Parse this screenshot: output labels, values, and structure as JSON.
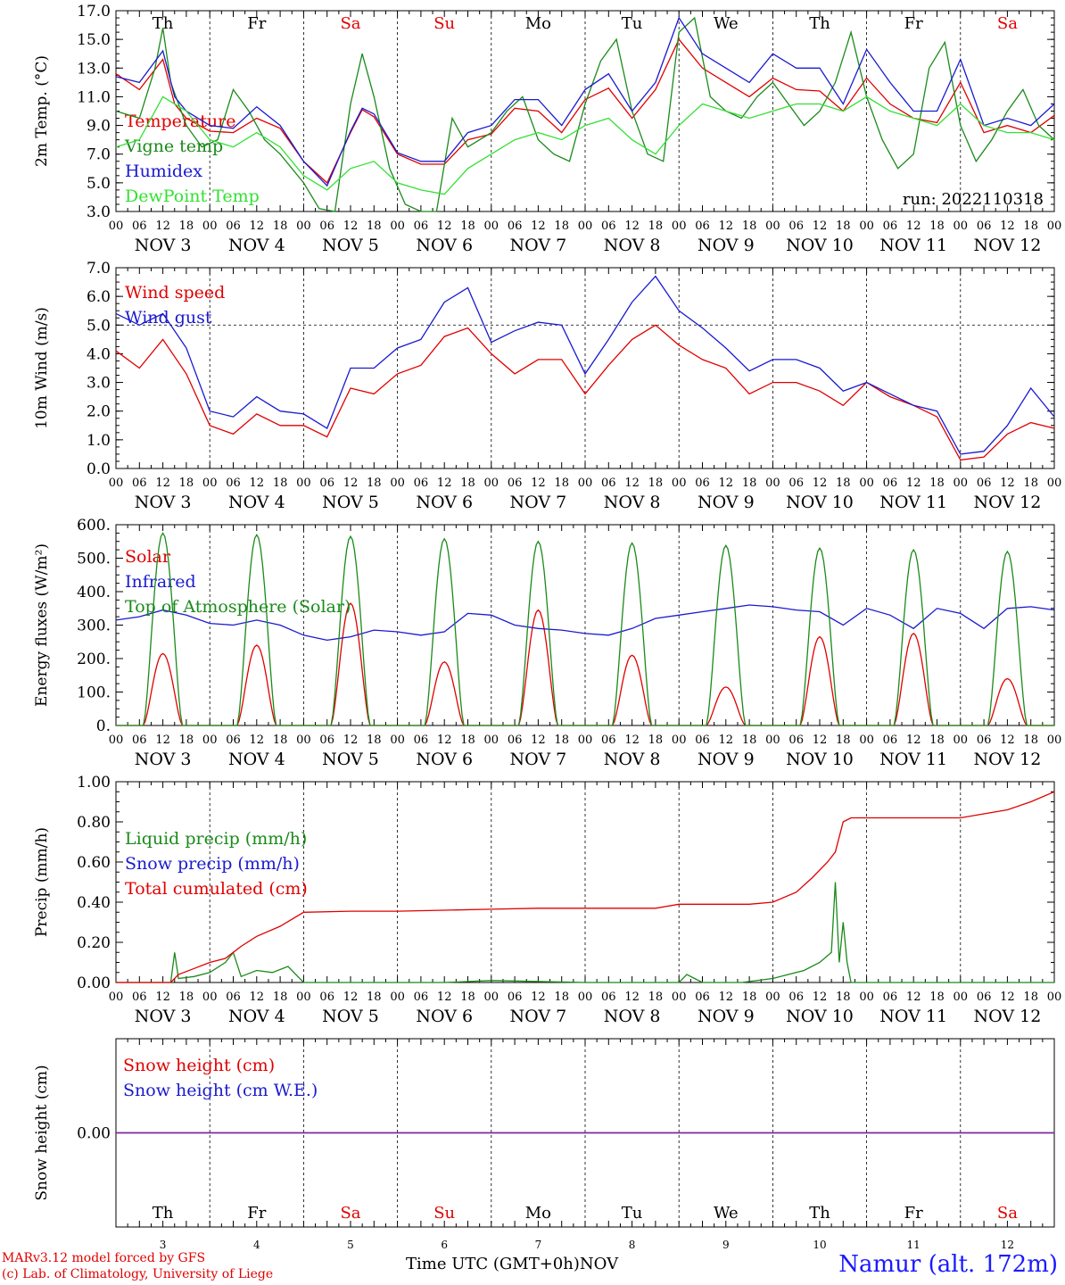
{
  "colors": {
    "red": "#e00000",
    "green": "#1a8a1a",
    "blue": "#1a1ad0",
    "lightgreen": "#33e033",
    "purple": "#7a2aa0"
  },
  "days": [
    {
      "abbr": "Th",
      "date": "NOV  3",
      "num": "3",
      "weekend": false
    },
    {
      "abbr": "Fr",
      "date": "NOV  4",
      "num": "4",
      "weekend": false
    },
    {
      "abbr": "Sa",
      "date": "NOV  5",
      "num": "5",
      "weekend": true
    },
    {
      "abbr": "Su",
      "date": "NOV  6",
      "num": "6",
      "weekend": true
    },
    {
      "abbr": "Mo",
      "date": "NOV  7",
      "num": "7",
      "weekend": false
    },
    {
      "abbr": "Tu",
      "date": "NOV  8",
      "num": "8",
      "weekend": false
    },
    {
      "abbr": "We",
      "date": "NOV  9",
      "num": "9",
      "weekend": false
    },
    {
      "abbr": "Th",
      "date": "NOV 10",
      "num": "10",
      "weekend": false
    },
    {
      "abbr": "Fr",
      "date": "NOV 11",
      "num": "11",
      "weekend": false
    },
    {
      "abbr": "Sa",
      "date": "NOV 12",
      "num": "12",
      "weekend": true
    }
  ],
  "hour_ticks": [
    "00",
    "06",
    "12",
    "18"
  ],
  "footer": {
    "model": "MARv3.12 model forced by GFS",
    "copyright": "(c) Lab. of Climatology, University of Liege",
    "time_label": "Time UTC (GMT+0h)",
    "month": "NOV",
    "station": "Namur (alt. 172m)"
  },
  "chart_data": [
    {
      "type": "line",
      "ylabel": "2m Temp. (°C)",
      "ylim": [
        3,
        17
      ],
      "yticks": [
        "3.0",
        "5.0",
        "7.0",
        "9.0",
        "11.0",
        "13.0",
        "15.0",
        "17.0"
      ],
      "annotation": "run: 2022110318",
      "show_day_names": true,
      "series": [
        {
          "name": "Temperature",
          "color": "red",
          "x": [
            0,
            6,
            12,
            15,
            18,
            24,
            30,
            36,
            42,
            48,
            54,
            60,
            63,
            66,
            72,
            78,
            84,
            90,
            96,
            102,
            108,
            114,
            120,
            126,
            132,
            138,
            144,
            150,
            156,
            162,
            168,
            174,
            180,
            186,
            192,
            198,
            204,
            210,
            216,
            222,
            228,
            234,
            240
          ],
          "y": [
            12.6,
            11.5,
            13.6,
            10.5,
            9.5,
            8.6,
            8.5,
            9.5,
            8.8,
            6.5,
            5.0,
            8.5,
            10.1,
            9.6,
            7.0,
            6.3,
            6.3,
            8.0,
            8.4,
            10.2,
            10.0,
            8.5,
            10.8,
            11.6,
            9.5,
            11.5,
            15.0,
            13.0,
            12.0,
            11.0,
            12.3,
            11.5,
            11.4,
            10.0,
            12.3,
            10.5,
            9.5,
            9.2,
            12.0,
            8.5,
            9.0,
            8.5,
            9.7
          ]
        },
        {
          "name": "Vigne temp",
          "color": "green",
          "x": [
            0,
            6,
            10,
            12,
            14,
            18,
            22,
            26,
            30,
            34,
            38,
            42,
            48,
            52,
            56,
            60,
            63,
            66,
            70,
            74,
            78,
            82,
            86,
            90,
            96,
            100,
            104,
            108,
            112,
            116,
            120,
            124,
            128,
            132,
            136,
            140,
            144,
            148,
            152,
            156,
            160,
            164,
            168,
            172,
            176,
            180,
            184,
            188,
            192,
            196,
            200,
            204,
            208,
            212,
            216,
            220,
            224,
            228,
            232,
            236,
            240
          ],
          "y": [
            10.0,
            9.5,
            13.0,
            15.8,
            12.0,
            9.0,
            7.5,
            8.0,
            11.5,
            10.0,
            8.0,
            7.0,
            5.0,
            3.2,
            3.0,
            10.5,
            14.0,
            11.0,
            6.0,
            3.5,
            3.0,
            3.0,
            9.5,
            7.5,
            8.5,
            10.0,
            11.0,
            8.0,
            7.0,
            6.5,
            10.5,
            13.5,
            15.0,
            10.0,
            7.0,
            6.5,
            15.5,
            16.5,
            11.0,
            10.0,
            9.5,
            11.0,
            12.0,
            10.5,
            9.0,
            10.0,
            12.0,
            15.5,
            11.0,
            8.0,
            6.0,
            7.0,
            13.0,
            14.8,
            9.0,
            6.5,
            8.0,
            10.0,
            11.5,
            9.0,
            8.0
          ]
        },
        {
          "name": "Humidex",
          "color": "blue",
          "x": [
            0,
            6,
            12,
            15,
            18,
            24,
            30,
            36,
            42,
            48,
            54,
            60,
            63,
            66,
            72,
            78,
            84,
            90,
            96,
            102,
            108,
            114,
            120,
            126,
            132,
            138,
            144,
            150,
            156,
            162,
            168,
            174,
            180,
            186,
            192,
            198,
            204,
            210,
            216,
            222,
            228,
            234,
            240
          ],
          "y": [
            12.4,
            12.0,
            14.2,
            11.0,
            10.0,
            9.0,
            8.8,
            10.3,
            9.0,
            6.5,
            4.8,
            8.6,
            10.2,
            9.8,
            7.1,
            6.5,
            6.5,
            8.5,
            9.0,
            10.8,
            10.8,
            9.0,
            11.5,
            12.6,
            10.0,
            12.0,
            16.5,
            14.0,
            13.0,
            12.0,
            14.0,
            13.0,
            13.0,
            10.5,
            14.3,
            12.0,
            10.0,
            10.0,
            13.6,
            9.0,
            9.5,
            9.0,
            10.5
          ]
        },
        {
          "name": "DewPoint Temp",
          "color": "lightgreen",
          "x": [
            0,
            6,
            12,
            18,
            24,
            30,
            36,
            42,
            48,
            54,
            60,
            66,
            72,
            78,
            84,
            90,
            96,
            102,
            108,
            114,
            120,
            126,
            132,
            138,
            144,
            150,
            156,
            162,
            168,
            174,
            180,
            186,
            192,
            198,
            204,
            210,
            216,
            222,
            228,
            234,
            240
          ],
          "y": [
            7.5,
            8.0,
            11.0,
            10.0,
            8.0,
            7.5,
            8.5,
            7.5,
            5.5,
            4.5,
            6.0,
            6.5,
            5.0,
            4.5,
            4.2,
            6.0,
            7.0,
            8.0,
            8.5,
            8.0,
            9.0,
            9.5,
            8.0,
            7.0,
            9.0,
            10.5,
            10.0,
            9.5,
            10.0,
            10.5,
            10.5,
            10.0,
            11.0,
            10.0,
            9.5,
            9.0,
            10.5,
            9.0,
            8.5,
            8.5,
            8.0
          ]
        }
      ]
    },
    {
      "type": "line",
      "ylabel": "10m Wind (m/s)",
      "ylim": [
        0,
        7
      ],
      "yticks": [
        "0.0",
        "1.0",
        "2.0",
        "3.0",
        "4.0",
        "5.0",
        "6.0",
        "7.0"
      ],
      "reference_line": 5,
      "series": [
        {
          "name": "Wind speed",
          "color": "red",
          "x": [
            0,
            6,
            12,
            18,
            24,
            30,
            36,
            42,
            48,
            54,
            60,
            66,
            72,
            78,
            84,
            90,
            96,
            102,
            108,
            114,
            120,
            126,
            132,
            138,
            144,
            150,
            156,
            162,
            168,
            174,
            180,
            186,
            192,
            198,
            204,
            210,
            216,
            222,
            228,
            234,
            240
          ],
          "y": [
            4.1,
            3.5,
            4.5,
            3.3,
            1.5,
            1.2,
            1.9,
            1.5,
            1.5,
            1.1,
            2.8,
            2.6,
            3.3,
            3.6,
            4.6,
            4.9,
            4.0,
            3.3,
            3.8,
            3.8,
            2.6,
            3.6,
            4.5,
            5.0,
            4.3,
            3.8,
            3.5,
            2.6,
            3.0,
            3.0,
            2.7,
            2.2,
            3.0,
            2.5,
            2.2,
            1.8,
            0.3,
            0.4,
            1.2,
            1.6,
            1.4
          ]
        },
        {
          "name": "Wind gust",
          "color": "blue",
          "x": [
            0,
            6,
            12,
            18,
            24,
            30,
            36,
            42,
            48,
            54,
            60,
            66,
            72,
            78,
            84,
            90,
            96,
            102,
            108,
            114,
            120,
            126,
            132,
            138,
            144,
            150,
            156,
            162,
            168,
            174,
            180,
            186,
            192,
            198,
            204,
            210,
            216,
            222,
            228,
            234,
            240
          ],
          "y": [
            5.4,
            5.0,
            5.4,
            4.2,
            2.0,
            1.8,
            2.5,
            2.0,
            1.9,
            1.4,
            3.5,
            3.5,
            4.2,
            4.5,
            5.8,
            6.3,
            4.4,
            4.8,
            5.1,
            5.0,
            3.3,
            4.5,
            5.8,
            6.7,
            5.5,
            4.9,
            4.2,
            3.4,
            3.8,
            3.8,
            3.5,
            2.7,
            3.0,
            2.6,
            2.2,
            2.0,
            0.5,
            0.6,
            1.5,
            2.8,
            1.8
          ]
        }
      ]
    },
    {
      "type": "line",
      "ylabel": "Energy fluxes (W/m²)",
      "ylim": [
        0,
        600
      ],
      "yticks": [
        "0.",
        "100.",
        "200.",
        "300.",
        "400.",
        "500.",
        "600."
      ],
      "series": [
        {
          "name": "Solar",
          "color": "red",
          "peaks": [
            215,
            240,
            365,
            190,
            345,
            210,
            115,
            265,
            275,
            140
          ],
          "peak_scale": [
            0.9,
            0.7,
            1.0,
            0.6,
            1.0,
            1.0,
            0.55,
            1.0,
            1.0,
            1.0
          ]
        },
        {
          "name": "Infrared",
          "color": "blue",
          "x": [
            0,
            6,
            12,
            18,
            24,
            30,
            36,
            42,
            48,
            54,
            60,
            66,
            72,
            78,
            84,
            90,
            96,
            102,
            108,
            114,
            120,
            126,
            132,
            138,
            144,
            150,
            156,
            162,
            168,
            174,
            180,
            186,
            192,
            198,
            204,
            210,
            216,
            222,
            228,
            234,
            240
          ],
          "y": [
            315,
            325,
            345,
            330,
            305,
            300,
            315,
            300,
            270,
            255,
            265,
            285,
            280,
            270,
            280,
            335,
            330,
            300,
            290,
            285,
            275,
            270,
            290,
            320,
            330,
            340,
            350,
            360,
            355,
            345,
            340,
            300,
            350,
            330,
            290,
            350,
            335,
            290,
            350,
            355,
            345
          ]
        },
        {
          "name": "Top of Atmosphere (Solar)",
          "color": "green",
          "peaks": [
            575,
            570,
            565,
            558,
            550,
            545,
            538,
            530,
            525,
            520
          ],
          "peak_scale": [
            1,
            1,
            1,
            1,
            1,
            1,
            1,
            1,
            1,
            1
          ]
        }
      ]
    },
    {
      "type": "line",
      "ylabel": "Precip (mm/h)",
      "ylim": [
        0,
        1
      ],
      "yticks": [
        "0.00",
        "0.20",
        "0.40",
        "0.60",
        "0.80",
        "1.00"
      ],
      "series": [
        {
          "name": "Liquid precip (mm/h)",
          "color": "green",
          "x": [
            0,
            14,
            15,
            16,
            20,
            24,
            28,
            30,
            32,
            36,
            40,
            44,
            48,
            84,
            96,
            120,
            144,
            146,
            148,
            150,
            160,
            168,
            172,
            176,
            180,
            183,
            184,
            185,
            186,
            187,
            188,
            240
          ],
          "y": [
            0,
            0,
            0.15,
            0.02,
            0.03,
            0.05,
            0.1,
            0.15,
            0.03,
            0.06,
            0.05,
            0.08,
            0,
            0,
            0.01,
            0,
            0,
            0.04,
            0.02,
            0,
            0,
            0.02,
            0.04,
            0.06,
            0.1,
            0.15,
            0.5,
            0.1,
            0.3,
            0.1,
            0,
            0
          ]
        },
        {
          "name": "Snow precip (mm/h)",
          "color": "blue",
          "x": [],
          "y": []
        },
        {
          "name": "Total cumulated (cm)",
          "color": "red",
          "x": [
            0,
            14,
            16,
            20,
            24,
            28,
            32,
            36,
            42,
            48,
            60,
            72,
            84,
            96,
            108,
            120,
            132,
            138,
            144,
            150,
            156,
            162,
            168,
            174,
            178,
            182,
            184,
            186,
            188,
            192,
            204,
            216,
            222,
            228,
            234,
            240
          ],
          "y": [
            0,
            0,
            0.04,
            0.07,
            0.1,
            0.12,
            0.18,
            0.23,
            0.28,
            0.35,
            0.355,
            0.355,
            0.36,
            0.365,
            0.37,
            0.37,
            0.37,
            0.37,
            0.39,
            0.39,
            0.39,
            0.39,
            0.4,
            0.45,
            0.52,
            0.6,
            0.65,
            0.8,
            0.82,
            0.82,
            0.82,
            0.82,
            0.84,
            0.86,
            0.9,
            0.95
          ]
        }
      ]
    },
    {
      "type": "line",
      "ylabel": "Snow height (cm)",
      "ylim": [
        -1,
        1
      ],
      "yticks": [
        "0.00"
      ],
      "show_day_names_bottom": true,
      "series": [
        {
          "name": "Snow height (cm)",
          "color": "red",
          "x": [
            0,
            240
          ],
          "y": [
            0,
            0
          ]
        },
        {
          "name": "Snow height (cm W.E.)",
          "color": "blue",
          "x": [
            0,
            240
          ],
          "y": [
            0,
            0
          ]
        }
      ]
    }
  ]
}
